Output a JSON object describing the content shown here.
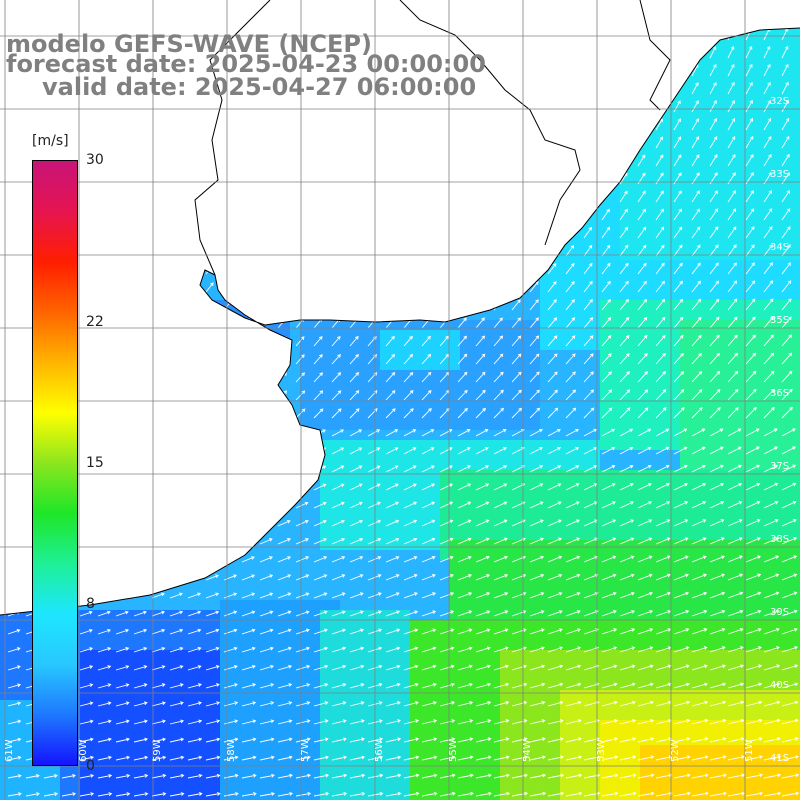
{
  "title": {
    "line1": "modelo GEFS-WAVE (NCEP)",
    "line2": "forecast date: 2025-04-23 00:00:00",
    "line3": "valid date: 2025-04-27 06:00:00"
  },
  "colorbar": {
    "unit": "[m/s]",
    "min": 0,
    "max": 30,
    "tick_labels": [
      "30",
      "22",
      "15",
      "8",
      "0"
    ],
    "colors": [
      "#1414ff",
      "#1e78ff",
      "#28c8ff",
      "#1ee6ff",
      "#1ef096",
      "#1ee628",
      "#8ce61e",
      "#ffff00",
      "#ffb400",
      "#ff6400",
      "#ff1e00",
      "#e61450",
      "#c81478"
    ]
  },
  "grid": {
    "lat_labels": [
      "32S",
      "33S",
      "34S",
      "35S",
      "36S",
      "37S",
      "38S",
      "39S",
      "40S",
      "41S"
    ],
    "lon_labels": [
      "61W",
      "60W",
      "59W",
      "58W",
      "57W",
      "56W",
      "55W",
      "54W",
      "53W",
      "52W",
      "51W"
    ]
  },
  "legend": {
    "land_color": "#ffffff",
    "arrow_color": "#ffffff",
    "coast_color": "#000000"
  }
}
